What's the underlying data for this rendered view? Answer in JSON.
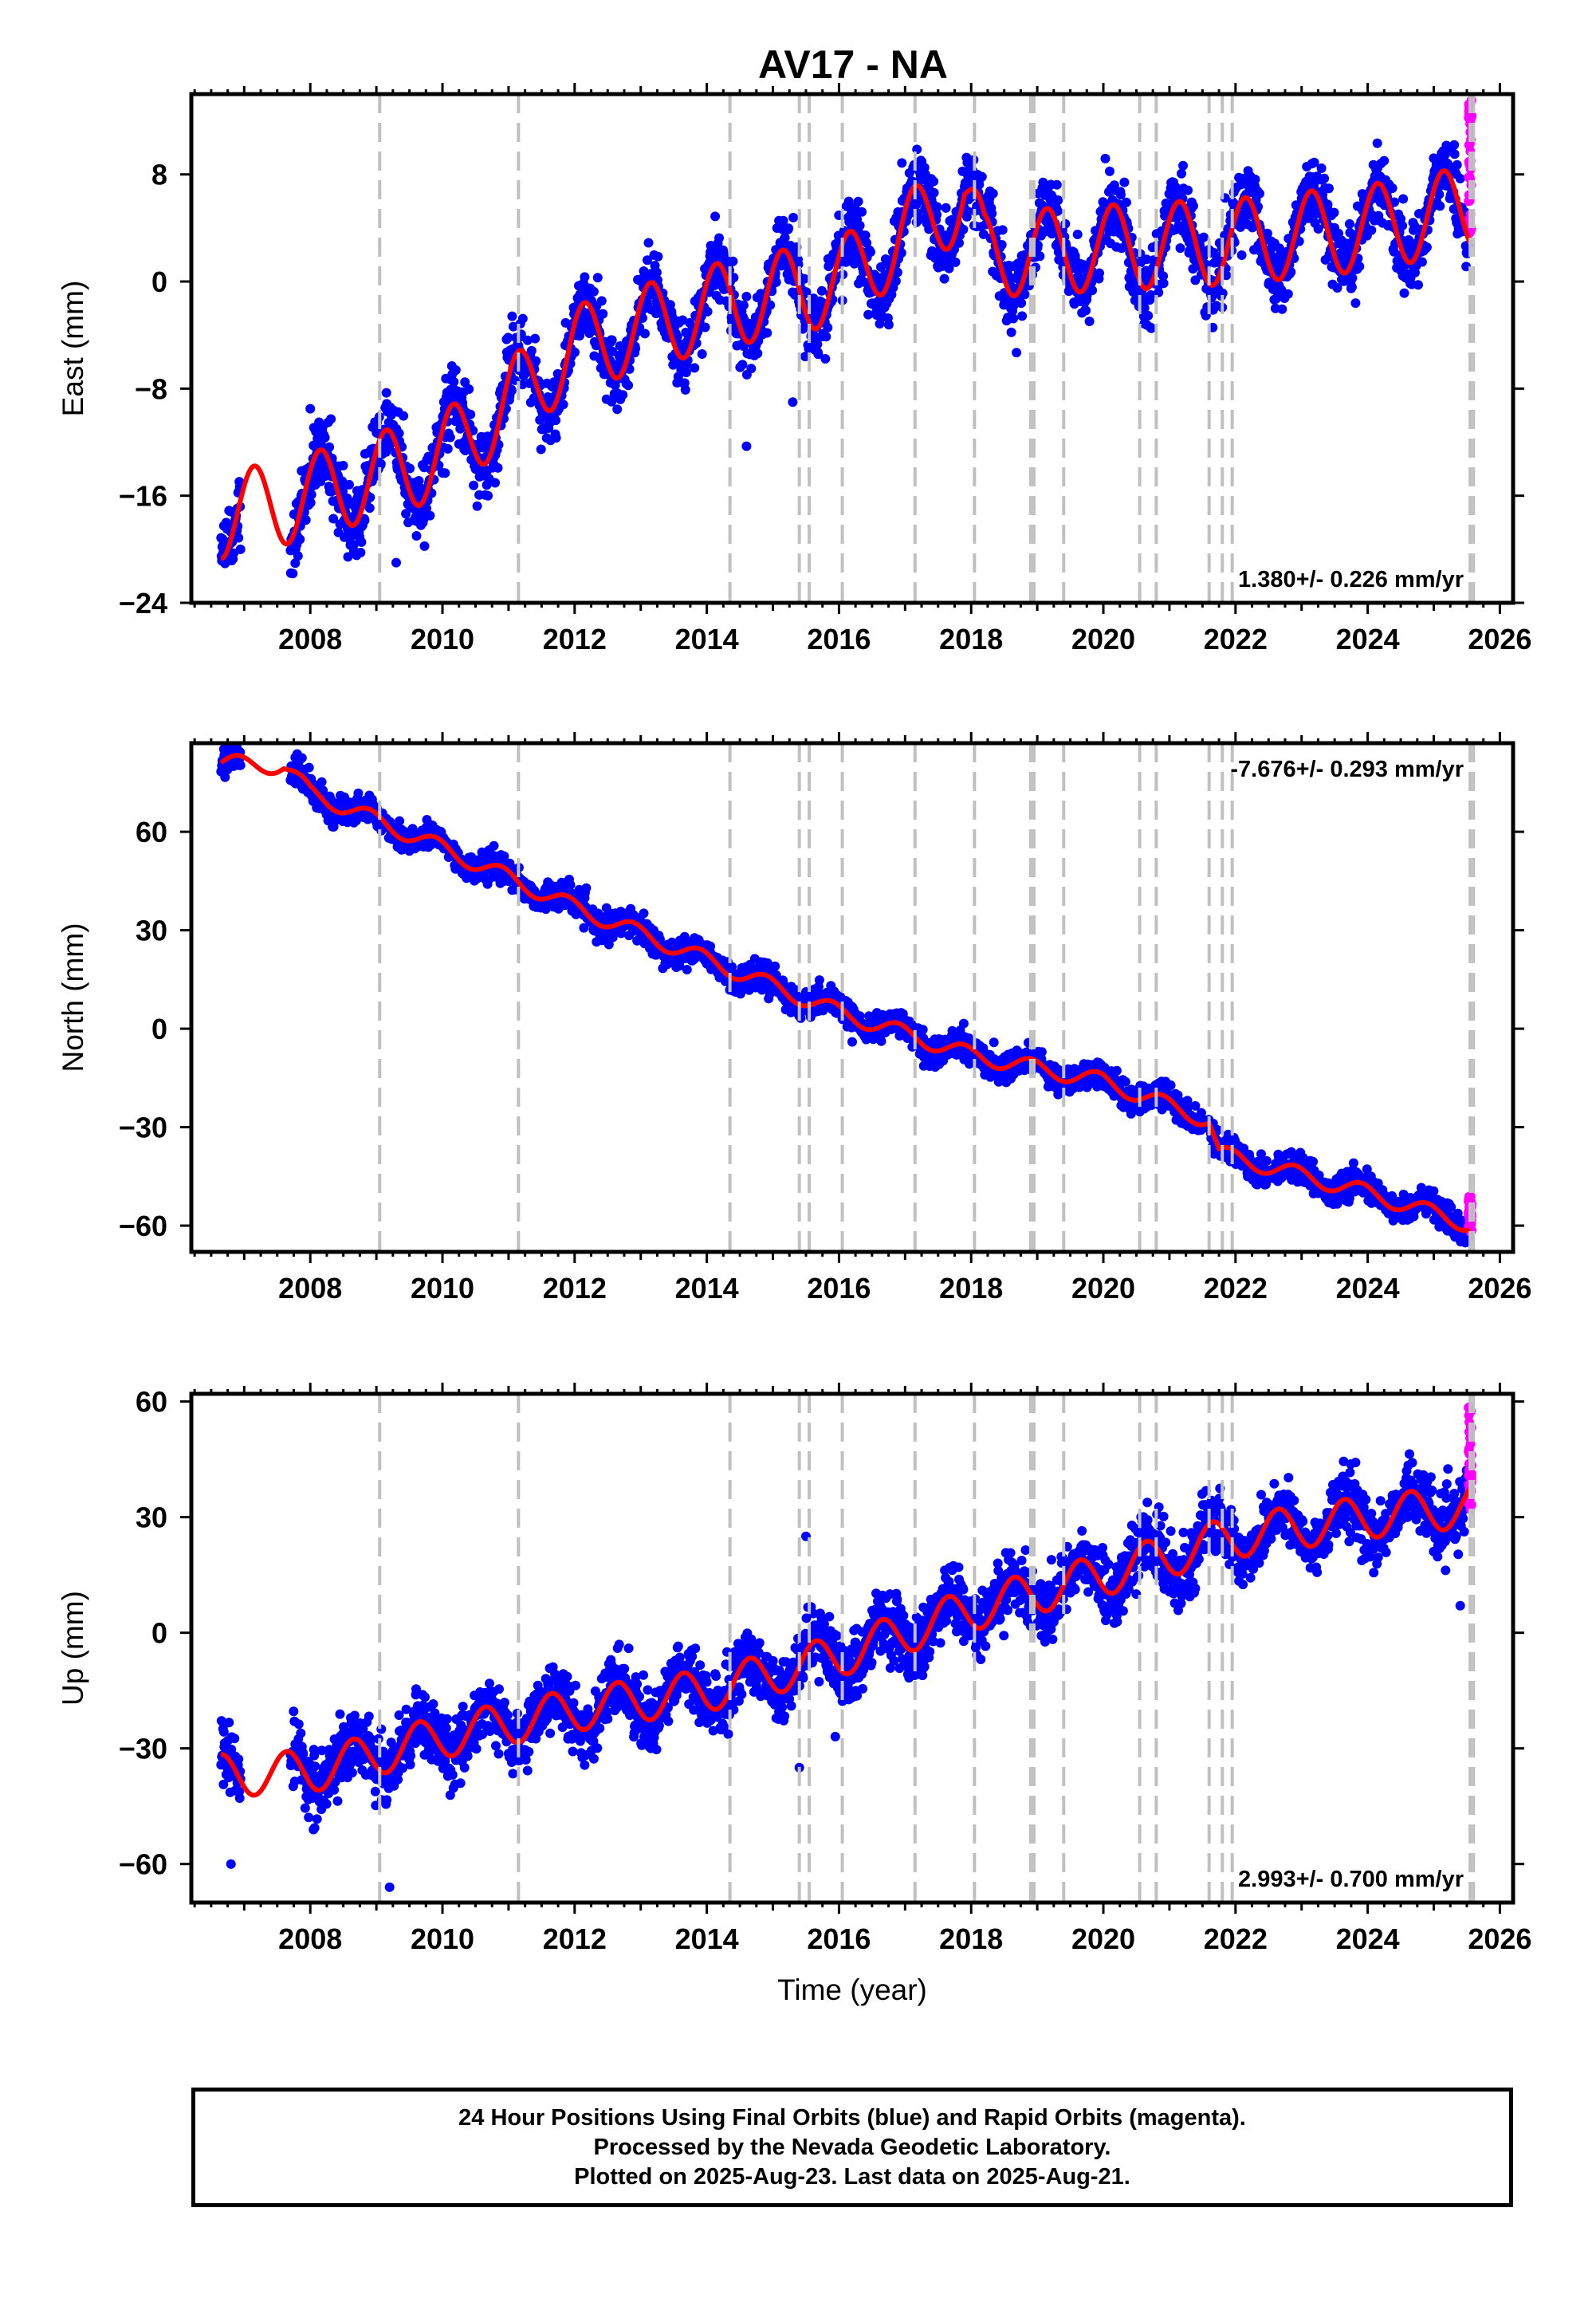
{
  "title": "AV17 - NA",
  "note_lines": [
    "24 Hour Positions Using Final Orbits (blue) and Rapid Orbits (magenta).",
    "Processed by the Nevada Geodetic Laboratory.",
    "Plotted on 2025-Aug-23. Last data on 2025-Aug-21."
  ],
  "colors": {
    "final_orbits": "#0000ff",
    "rapid_orbits": "#ff00ff",
    "model_fit": "#ff0000",
    "event_lines": "#c0c0c0",
    "frame": "#000000"
  },
  "chart_data": [
    {
      "type": "scatter",
      "name": "east",
      "ylabel": "East (mm)",
      "xlabel": "",
      "xlim": [
        2006.2,
        2026.2
      ],
      "ylim": [
        -24,
        14
      ],
      "yticks": [
        8,
        0,
        -8,
        -16,
        -24
      ],
      "ytick_labels": [
        "8",
        "0",
        "−8",
        "−16",
        "−24"
      ],
      "xticks": [
        2008,
        2010,
        2012,
        2014,
        2016,
        2018,
        2020,
        2022,
        2024,
        2026
      ],
      "rate": "1.380+/- 0.226 mm/yr",
      "rate_position": "bottom-right",
      "data_start": 2006.65,
      "data_end": 2025.55,
      "gap": [
        2006.95,
        2007.7
      ],
      "rapid_start": 2025.52,
      "trend": [
        [
          2006.7,
          -17.5
        ],
        [
          2008.0,
          -16.0
        ],
        [
          2010.0,
          -13.0
        ],
        [
          2012.0,
          -5.0
        ],
        [
          2014.0,
          -2.0
        ],
        [
          2016.0,
          0.0
        ],
        [
          2017.9,
          6.5
        ],
        [
          2018.2,
          2.0
        ],
        [
          2020.0,
          2.5
        ],
        [
          2022.0,
          3.0
        ],
        [
          2024.0,
          4.0
        ],
        [
          2025.6,
          5.5
        ]
      ],
      "annual_amplitude": 3.2,
      "annual_phase": 0.1,
      "noise": 1.3,
      "outliers": [
        [
          2014.6,
          -12.3
        ],
        [
          2009.3,
          -21.0
        ],
        [
          2008.0,
          -9.5
        ],
        [
          2015.3,
          -9.0
        ]
      ],
      "rapid_range": [
        3.5,
        14.0
      ],
      "grid": false,
      "legend": "none"
    },
    {
      "type": "scatter",
      "name": "north",
      "ylabel": "North (mm)",
      "xlabel": "",
      "xlim": [
        2006.2,
        2026.2
      ],
      "ylim": [
        -68,
        87
      ],
      "yticks": [
        60,
        30,
        0,
        -30,
        -60
      ],
      "ytick_labels": [
        "60",
        "30",
        "0",
        "−30",
        "−60"
      ],
      "xticks": [
        2008,
        2010,
        2012,
        2014,
        2016,
        2018,
        2020,
        2022,
        2024,
        2026
      ],
      "rate": "-7.676+/- 0.293 mm/yr",
      "rate_position": "top-right",
      "data_start": 2006.65,
      "data_end": 2025.55,
      "gap": [
        2006.95,
        2007.7
      ],
      "rapid_start": 2025.52,
      "trend": [
        [
          2006.7,
          81.0
        ],
        [
          2007.6,
          80.0
        ],
        [
          2008.0,
          72.0
        ],
        [
          2010.0,
          55.0
        ],
        [
          2012.0,
          37.0
        ],
        [
          2014.0,
          21.0
        ],
        [
          2016.0,
          5.0
        ],
        [
          2018.0,
          -8.0
        ],
        [
          2020.0,
          -16.0
        ],
        [
          2021.6,
          -28.0
        ],
        [
          2021.75,
          -38.0
        ],
        [
          2024.0,
          -50.0
        ],
        [
          2025.6,
          -60.0
        ]
      ],
      "annual_amplitude": 2.5,
      "annual_phase": 0.35,
      "noise": 2.0,
      "outliers": [
        [
          2009.0,
          63.0
        ],
        [
          2016.2,
          -4.0
        ],
        [
          2023.0,
          -44.0
        ],
        [
          2013.7,
          18.0
        ]
      ],
      "rapid_range": [
        -62.0,
        -51.0
      ],
      "grid": false,
      "legend": "none"
    },
    {
      "type": "scatter",
      "name": "up",
      "ylabel": "Up (mm)",
      "xlabel": "Time (year)",
      "xlim": [
        2006.2,
        2026.2
      ],
      "ylim": [
        -70,
        62
      ],
      "yticks": [
        60,
        30,
        0,
        -30,
        -60
      ],
      "ytick_labels": [
        "60",
        "30",
        "0",
        "−30",
        "−60"
      ],
      "xticks": [
        2008,
        2010,
        2012,
        2014,
        2016,
        2018,
        2020,
        2022,
        2024,
        2026
      ],
      "rate": "2.993+/- 0.700 mm/yr",
      "rate_position": "bottom-right",
      "data_start": 2006.65,
      "data_end": 2025.55,
      "gap": [
        2006.95,
        2007.7
      ],
      "rapid_start": 2025.52,
      "trend": [
        [
          2006.7,
          -37.0
        ],
        [
          2008.0,
          -36.0
        ],
        [
          2010.0,
          -27.0
        ],
        [
          2012.0,
          -20.0
        ],
        [
          2014.0,
          -15.0
        ],
        [
          2016.0,
          -6.0
        ],
        [
          2018.0,
          6.0
        ],
        [
          2020.0,
          15.0
        ],
        [
          2022.0,
          25.0
        ],
        [
          2024.0,
          30.0
        ],
        [
          2025.6,
          33.0
        ]
      ],
      "annual_amplitude": 5.5,
      "annual_phase": 0.6,
      "noise": 4.0,
      "outliers": [
        [
          2009.2,
          -66.0
        ],
        [
          2006.8,
          -60.0
        ],
        [
          2015.4,
          -35.0
        ],
        [
          2015.5,
          25.0
        ],
        [
          2025.4,
          7.0
        ]
      ],
      "rapid_range": [
        32.0,
        59.0
      ],
      "grid": false,
      "legend": "none"
    }
  ],
  "event_lines": [
    2009.05,
    2011.15,
    2014.35,
    2015.4,
    2015.55,
    2016.05,
    2017.15,
    2018.05,
    2018.9,
    2018.95,
    2019.4,
    2020.55,
    2020.8,
    2021.6,
    2021.8,
    2021.95,
    2025.55,
    2025.6
  ]
}
